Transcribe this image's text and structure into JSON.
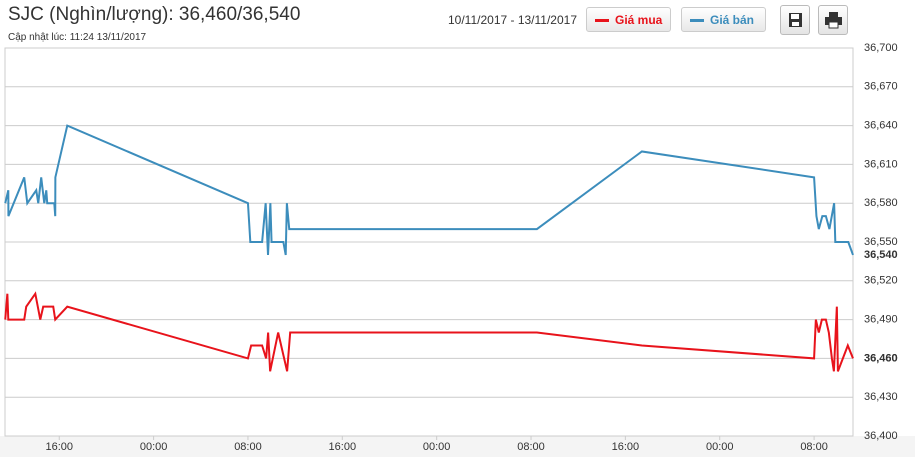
{
  "chart_data": {
    "type": "line",
    "title": "SJC (Nghìn/lượng): 36,460/36,540",
    "subtitle": "Cập nhật lúc: 11:24 13/11/2017",
    "date_range": "10/11/2017 - 13/11/2017",
    "xlim": [
      -4.6,
      67.3
    ],
    "xticks": [
      {
        "value": 0,
        "label": "16:00"
      },
      {
        "value": 8,
        "label": "00:00"
      },
      {
        "value": 16,
        "label": "08:00"
      },
      {
        "value": 24,
        "label": "16:00"
      },
      {
        "value": 32,
        "label": "00:00"
      },
      {
        "value": 40,
        "label": "08:00"
      },
      {
        "value": 48,
        "label": "16:00"
      },
      {
        "value": 56,
        "label": "00:00"
      },
      {
        "value": 64,
        "label": "08:00"
      }
    ],
    "ylim": [
      36400,
      36700
    ],
    "yticks": [
      {
        "value": 36400,
        "label": "36,400"
      },
      {
        "value": 36430,
        "label": "36,430"
      },
      {
        "value": 36460,
        "label": "36,460"
      },
      {
        "value": 36490,
        "label": "36,490"
      },
      {
        "value": 36520,
        "label": "36,520"
      },
      {
        "value": 36550,
        "label": "36,550"
      },
      {
        "value": 36580,
        "label": "36,580"
      },
      {
        "value": 36610,
        "label": "36,610"
      },
      {
        "value": 36640,
        "label": "36,640"
      },
      {
        "value": 36670,
        "label": "36,670"
      },
      {
        "value": 36700,
        "label": "36,700"
      }
    ],
    "grid": true,
    "series": [
      {
        "name": "Giá mua",
        "color": "#e8131b",
        "current_label": "36,460",
        "x": [
          -4.58,
          -4.4,
          -4.32,
          -2.97,
          -2.8,
          -2.03,
          -1.61,
          -1.36,
          -0.93,
          -0.51,
          -0.34,
          0.68,
          16.0,
          16.27,
          17.2,
          17.54,
          17.71,
          17.88,
          18.56,
          19.32,
          19.58,
          40.5,
          49.4,
          64.0,
          64.15,
          64.4,
          64.66,
          65.0,
          65.25,
          65.51,
          65.68,
          65.93,
          66.02,
          66.86,
          67.3
        ],
        "values": [
          36490,
          36510,
          36490,
          36490,
          36500,
          36510,
          36490,
          36500,
          36500,
          36500,
          36490,
          36500,
          36460,
          36470,
          36470,
          36460,
          36480,
          36450,
          36480,
          36450,
          36480,
          36480,
          36470,
          36460,
          36490,
          36480,
          36490,
          36490,
          36480,
          36460,
          36450,
          36500,
          36450,
          36470,
          36460
        ]
      },
      {
        "name": "Giá bán",
        "color": "#3c8dbc",
        "current_label": "36,540",
        "x": [
          -4.58,
          -4.32,
          -4.31,
          -2.97,
          -2.71,
          -1.95,
          -1.78,
          -1.53,
          -1.27,
          -1.1,
          -1.02,
          -0.42,
          -0.34,
          -0.33,
          0.68,
          16.0,
          16.2,
          17.2,
          17.5,
          17.7,
          17.9,
          18.0,
          19.0,
          19.2,
          19.3,
          19.5,
          40.5,
          49.4,
          64.0,
          64.2,
          64.4,
          64.7,
          65.0,
          65.3,
          65.7,
          65.8,
          66.9,
          67.3
        ],
        "values": [
          36580,
          36590,
          36570,
          36600,
          36580,
          36590,
          36580,
          36600,
          36580,
          36590,
          36580,
          36580,
          36570,
          36600,
          36640,
          36580,
          36550,
          36550,
          36580,
          36540,
          36580,
          36550,
          36550,
          36540,
          36580,
          36560,
          36560,
          36620,
          36600,
          36570,
          36560,
          36570,
          36570,
          36560,
          36580,
          36550,
          36550,
          36540
        ]
      }
    ]
  }
}
